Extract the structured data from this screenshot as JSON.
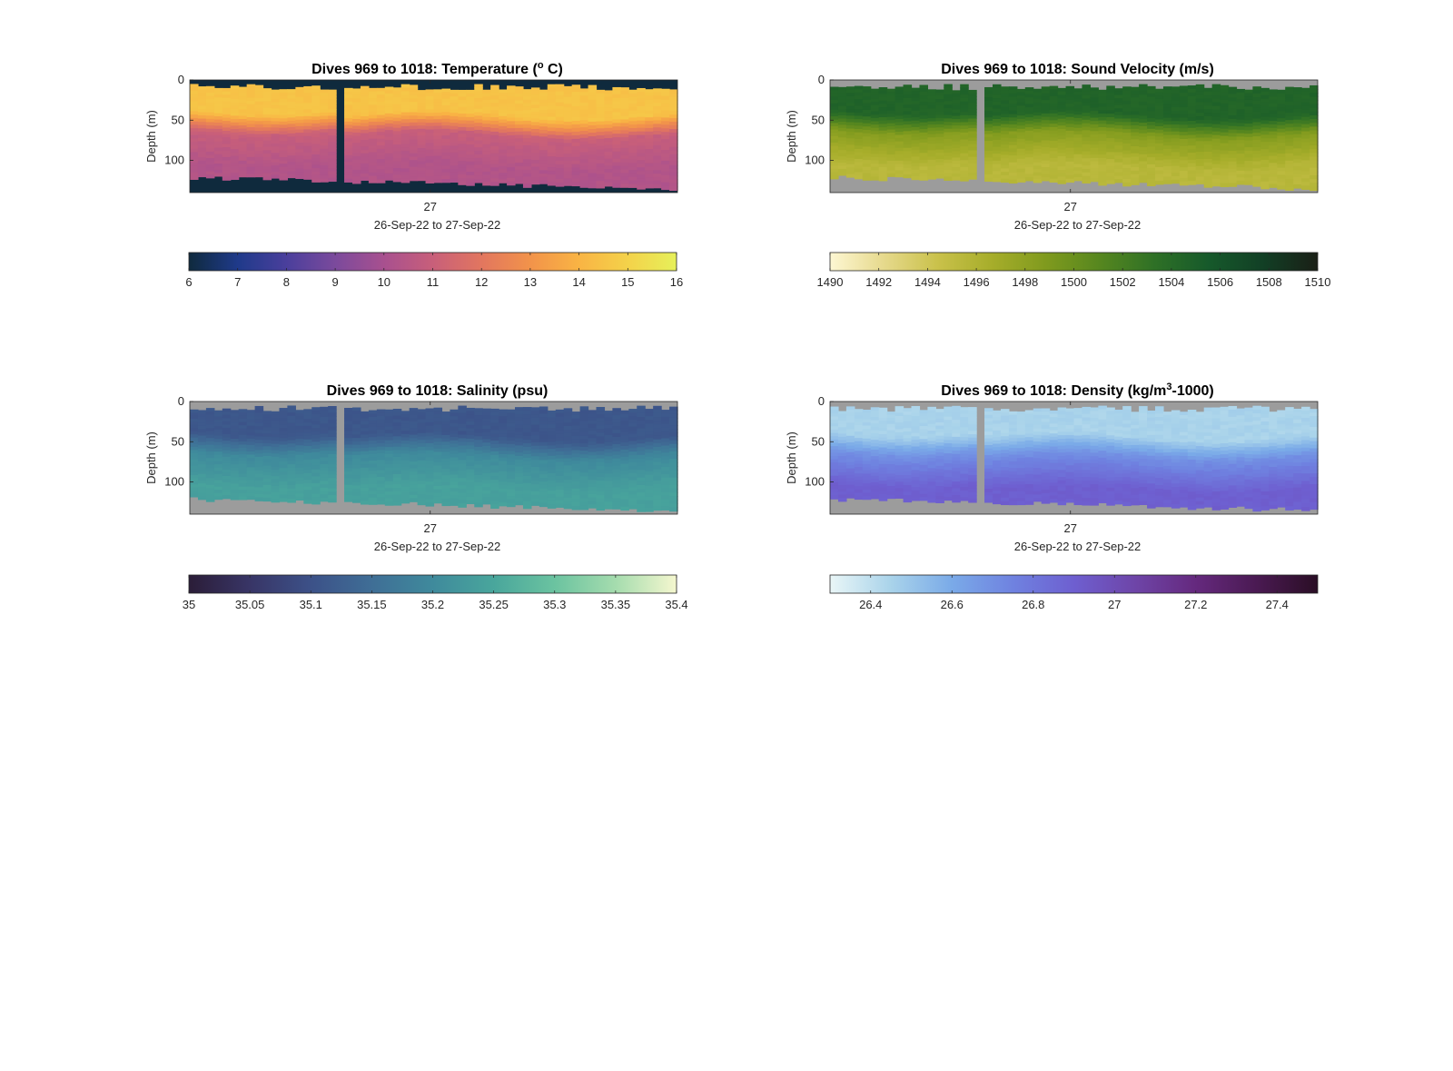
{
  "figure": {
    "background": "#ffffff",
    "no_data_colors": {
      "temperature": "#0f2a3d",
      "other": "#9c9c9c"
    }
  },
  "chart_data": [
    {
      "type": "heatmap",
      "title_pre": "Dives 969 to 1018: Temperature (",
      "title_sup": "o",
      "title_post": " C)",
      "ylabel": "Depth (m)",
      "yticks": [
        "0",
        "50",
        "100"
      ],
      "ylim": [
        0,
        140
      ],
      "y_reversed": true,
      "xticks": [
        "27"
      ],
      "xlabel": "26-Sep-22 to 27-Sep-22",
      "colorbar": {
        "ticks": [
          "6",
          "7",
          "8",
          "9",
          "10",
          "11",
          "12",
          "13",
          "14",
          "15",
          "16"
        ],
        "range": [
          6,
          16
        ],
        "colors": [
          "#0f2a3d",
          "#1f3a8a",
          "#4a3f9c",
          "#7b4a9c",
          "#a8508f",
          "#c85f7a",
          "#e2765f",
          "#f2934a",
          "#f9b444",
          "#f4d24a",
          "#e6f05a"
        ]
      },
      "profile": {
        "surface_value": 14.5,
        "thermocline_value": 11.0,
        "deep_value": 10.3,
        "gap_after_dive_fraction": 0.3
      }
    },
    {
      "type": "heatmap",
      "title_pre": "Dives 969 to 1018: Sound Velocity (m/s)",
      "title_sup": "",
      "title_post": "",
      "ylabel": "Depth (m)",
      "yticks": [
        "0",
        "50",
        "100"
      ],
      "ylim": [
        0,
        140
      ],
      "y_reversed": true,
      "xticks": [
        "27"
      ],
      "xlabel": "26-Sep-22 to 27-Sep-22",
      "colorbar": {
        "ticks": [
          "1490",
          "1492",
          "1494",
          "1496",
          "1498",
          "1500",
          "1502",
          "1504",
          "1506",
          "1508",
          "1510"
        ],
        "range": [
          1490,
          1510
        ],
        "colors": [
          "#fdf7d3",
          "#e6d98c",
          "#c9c14a",
          "#a6ad2a",
          "#7f9a1e",
          "#55861f",
          "#2e7026",
          "#16592b",
          "#123f25",
          "#1a1f16"
        ]
      },
      "profile": {
        "surface_value": 1504.5,
        "thermocline_value": 1498.5,
        "deep_value": 1495.5,
        "gap_after_dive_fraction": 0.3
      }
    },
    {
      "type": "heatmap",
      "title_pre": "Dives 969 to 1018: Salinity (psu)",
      "title_sup": "",
      "title_post": "",
      "ylabel": "Depth (m)",
      "yticks": [
        "0",
        "50",
        "100"
      ],
      "ylim": [
        0,
        140
      ],
      "y_reversed": true,
      "xticks": [
        "27"
      ],
      "xlabel": "26-Sep-22 to 27-Sep-22",
      "colorbar": {
        "ticks": [
          "35",
          "35.05",
          "35.1",
          "35.15",
          "35.2",
          "35.25",
          "35.3",
          "35.35",
          "35.4"
        ],
        "range": [
          35,
          35.4
        ],
        "colors": [
          "#2b1d38",
          "#383566",
          "#3c5188",
          "#3f6e96",
          "#3f8a9c",
          "#49a69c",
          "#6bc3a0",
          "#a5dcae",
          "#f5f7cf"
        ]
      },
      "profile": {
        "surface_value": 35.11,
        "thermocline_value": 35.2,
        "deep_value": 35.24,
        "gap_after_dive_fraction": 0.3
      }
    },
    {
      "type": "heatmap",
      "title_pre": "Dives 969 to 1018: Density (kg/m",
      "title_sup": "3",
      "title_post": "-1000)",
      "ylabel": "Depth (m)",
      "yticks": [
        "0",
        "50",
        "100"
      ],
      "ylim": [
        0,
        140
      ],
      "y_reversed": true,
      "xticks": [
        "27"
      ],
      "xlabel": "26-Sep-22 to 27-Sep-22",
      "colorbar": {
        "ticks": [
          "26.4",
          "26.6",
          "26.8",
          "27",
          "27.2",
          "27.4"
        ],
        "range": [
          26.3,
          27.5
        ],
        "colors": [
          "#e9f6f7",
          "#a9d3ea",
          "#7aaae8",
          "#6f82e0",
          "#6e5fd0",
          "#6e45a8",
          "#65297e",
          "#4a1a52",
          "#2a0e25"
        ]
      },
      "profile": {
        "surface_value": 26.45,
        "thermocline_value": 26.7,
        "deep_value": 26.9,
        "gap_after_dive_fraction": 0.3
      }
    }
  ]
}
